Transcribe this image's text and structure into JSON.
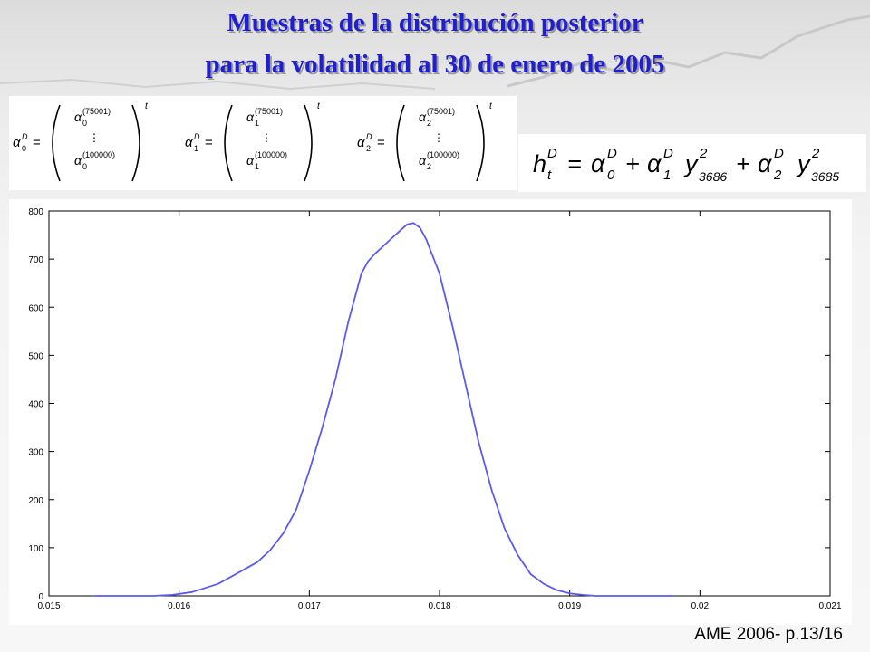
{
  "slide": {
    "title_line1": "Muestras de la distribución posterior",
    "title_line2": "para la volatilidad al 30 de enero de 2005",
    "footer": "AME 2006- p.13/16"
  },
  "math": {
    "vectors": [
      {
        "lhs": "α",
        "sub": "0",
        "top": "(75001)",
        "bottom": "(100000)"
      },
      {
        "lhs": "α",
        "sub": "1",
        "top": "(75001)",
        "bottom": "(100000)"
      },
      {
        "lhs": "α",
        "sub": "2",
        "top": "(75001)",
        "bottom": "(100000)"
      }
    ],
    "superscript_D": "D",
    "transpose": "t",
    "formula": "h_t^D = α_0^D + α_1^D y_3686^2 + α_2^D y_3685^2"
  },
  "chart_data": {
    "type": "line",
    "title": "",
    "xlabel": "",
    "ylabel": "",
    "xlim": [
      0.015,
      0.021
    ],
    "ylim": [
      0,
      800
    ],
    "xticks": [
      0.015,
      0.016,
      0.017,
      0.018,
      0.019,
      0.02,
      0.021
    ],
    "xtick_labels": [
      "0.015",
      "0.016",
      "0.017",
      "0.018",
      "0.019",
      "0.02",
      "0.021"
    ],
    "yticks": [
      0,
      100,
      200,
      300,
      400,
      500,
      600,
      700,
      800
    ],
    "ytick_labels": [
      "0",
      "100",
      "200",
      "300",
      "400",
      "500",
      "600",
      "700",
      "800"
    ],
    "grid": false,
    "line_color": "#5a5af0",
    "series": [
      {
        "x": [
          0.01535,
          0.0158,
          0.01595,
          0.0161,
          0.0163,
          0.0164,
          0.0165,
          0.0166,
          0.0167,
          0.0168,
          0.0169,
          0.017,
          0.0171,
          0.0172,
          0.0173,
          0.0174,
          0.01745,
          0.0175,
          0.0176,
          0.0177,
          0.01775,
          0.0178,
          0.01785,
          0.0179,
          0.018,
          0.0181,
          0.0182,
          0.0183,
          0.0184,
          0.0185,
          0.0186,
          0.0187,
          0.0188,
          0.0189,
          0.019,
          0.0191,
          0.0192,
          0.0193,
          0.0194,
          0.0196,
          0.0198
        ],
        "y": [
          0,
          0,
          2,
          8,
          25,
          40,
          55,
          70,
          95,
          130,
          180,
          260,
          350,
          450,
          570,
          670,
          695,
          710,
          735,
          760,
          772,
          775,
          765,
          740,
          670,
          560,
          440,
          320,
          220,
          140,
          85,
          45,
          25,
          12,
          5,
          2,
          0,
          0,
          0,
          0,
          0
        ]
      }
    ]
  }
}
